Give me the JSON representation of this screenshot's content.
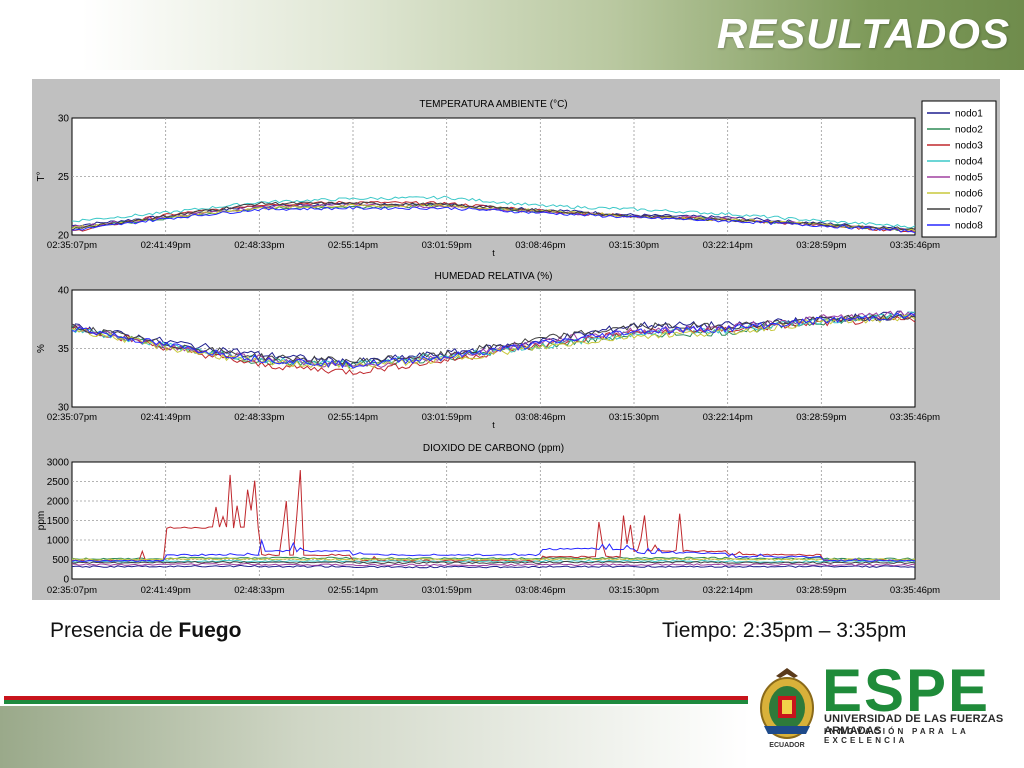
{
  "slide": {
    "title": "RESULTADOS",
    "caption_left_prefix": "Presencia de ",
    "caption_left_bold": "Fuego",
    "caption_right": "Tiempo: 2:35pm – 3:35pm"
  },
  "logo": {
    "word": "ESPE",
    "line1": "UNIVERSIDAD DE LAS FUERZAS ARMADAS",
    "line2": "INNOVACIÓN PARA LA EXCELENCIA",
    "crest_caption": "ECUADOR"
  },
  "colors": {
    "nodo1": "#1f1f8f",
    "nodo2": "#2e8b57",
    "nodo3": "#c0282d",
    "nodo4": "#3cc8c8",
    "nodo5": "#a040a0",
    "nodo6": "#c8c83c",
    "nodo7": "#404040",
    "nodo8": "#2828ff"
  },
  "chart_data": [
    {
      "type": "line",
      "title": "TEMPERATURA AMBIENTE (°C)",
      "xlabel": "t",
      "ylabel": "T°",
      "ylim": [
        20,
        30
      ],
      "yticks": [
        20,
        25,
        30
      ],
      "xticks": [
        "02:35:07pm",
        "02:41:49pm",
        "02:48:33pm",
        "02:55:14pm",
        "03:01:59pm",
        "03:08:46pm",
        "03:15:30pm",
        "03:22:14pm",
        "03:28:59pm",
        "03:35:46pm"
      ],
      "grid": true,
      "legend": "right",
      "legend_entries": [
        "nodo1",
        "nodo2",
        "nodo3",
        "nodo4",
        "nodo5",
        "nodo6",
        "nodo7",
        "nodo8"
      ],
      "series": [
        {
          "name": "nodo1",
          "values": [
            20.8,
            21.6,
            22.5,
            22.6,
            22.6,
            22.2,
            21.7,
            21.5,
            21.0,
            20.5
          ]
        },
        {
          "name": "nodo2",
          "values": [
            20.6,
            21.4,
            22.3,
            22.4,
            22.5,
            22.0,
            21.6,
            21.3,
            20.9,
            20.4
          ]
        },
        {
          "name": "nodo3",
          "values": [
            20.3,
            21.7,
            22.6,
            22.8,
            22.7,
            22.1,
            21.6,
            21.3,
            20.8,
            20.3
          ]
        },
        {
          "name": "nodo4",
          "values": [
            21.2,
            21.9,
            22.8,
            23.1,
            23.2,
            22.5,
            22.2,
            21.8,
            21.2,
            20.7
          ]
        },
        {
          "name": "nodo5",
          "values": [
            20.7,
            21.5,
            22.4,
            22.6,
            22.4,
            22.0,
            21.6,
            21.4,
            20.9,
            20.4
          ]
        },
        {
          "name": "nodo6",
          "values": [
            20.6,
            21.5,
            22.3,
            22.5,
            22.5,
            22.1,
            21.6,
            21.3,
            20.9,
            20.4
          ]
        },
        {
          "name": "nodo7",
          "values": [
            20.5,
            21.6,
            22.7,
            22.7,
            22.6,
            22.1,
            21.6,
            21.3,
            20.9,
            20.5
          ]
        },
        {
          "name": "nodo8",
          "values": [
            20.4,
            21.4,
            22.2,
            22.3,
            22.3,
            21.9,
            21.5,
            21.2,
            20.8,
            20.3
          ]
        }
      ]
    },
    {
      "type": "line",
      "title": "HUMEDAD RELATIVA (%)",
      "xlabel": "t",
      "ylabel": "%",
      "ylim": [
        30,
        40
      ],
      "yticks": [
        30,
        35,
        40
      ],
      "xticks": [
        "02:35:07pm",
        "02:41:49pm",
        "02:48:33pm",
        "02:55:14pm",
        "03:01:59pm",
        "03:08:46pm",
        "03:15:30pm",
        "03:22:14pm",
        "03:28:59pm",
        "03:35:46pm"
      ],
      "grid": true,
      "series": [
        {
          "name": "nodo1",
          "values": [
            36.9,
            35.6,
            34.5,
            33.8,
            34.6,
            35.6,
            37.0,
            37.0,
            37.5,
            38.0
          ]
        },
        {
          "name": "nodo2",
          "values": [
            36.8,
            35.2,
            33.9,
            33.6,
            34.2,
            35.2,
            36.2,
            36.4,
            37.3,
            37.8
          ]
        },
        {
          "name": "nodo3",
          "values": [
            36.9,
            35.1,
            33.6,
            33.0,
            34.0,
            35.3,
            36.4,
            36.6,
            37.2,
            37.5
          ]
        },
        {
          "name": "nodo4",
          "values": [
            36.7,
            35.3,
            34.0,
            33.7,
            34.4,
            35.2,
            36.3,
            36.6,
            37.4,
            37.9
          ]
        },
        {
          "name": "nodo5",
          "values": [
            36.8,
            35.2,
            34.2,
            33.4,
            34.3,
            35.6,
            36.5,
            36.8,
            37.6,
            38.0
          ]
        },
        {
          "name": "nodo6",
          "values": [
            36.7,
            35.1,
            33.8,
            33.5,
            34.1,
            35.1,
            36.1,
            36.4,
            37.3,
            37.6
          ]
        },
        {
          "name": "nodo7",
          "values": [
            36.9,
            35.4,
            34.3,
            33.9,
            34.5,
            35.8,
            36.9,
            36.9,
            37.5,
            37.7
          ]
        },
        {
          "name": "nodo8",
          "values": [
            36.8,
            35.3,
            34.1,
            33.6,
            34.3,
            35.4,
            36.5,
            36.7,
            37.4,
            37.8
          ]
        }
      ]
    },
    {
      "type": "line",
      "title": "DIOXIDO DE CARBONO (ppm)",
      "xlabel": "",
      "ylabel": "ppm",
      "ylim": [
        0,
        3000
      ],
      "yticks": [
        500,
        1000,
        1500,
        2000,
        2500,
        3000
      ],
      "xticks": [
        "02:35:07pm",
        "02:41:49pm",
        "02:48:33pm",
        "02:55:14pm",
        "03:01:59pm",
        "03:08:46pm",
        "03:15:30pm",
        "03:22:14pm",
        "03:28:59pm",
        "03:35:46pm"
      ],
      "grid": true,
      "series": [
        {
          "name": "nodo1",
          "values": [
            300,
            320,
            310,
            300,
            290,
            300,
            300,
            300,
            300,
            300
          ]
        },
        {
          "name": "nodo2",
          "values": [
            500,
            520,
            550,
            520,
            510,
            520,
            540,
            520,
            510,
            500
          ]
        },
        {
          "name": "nodo3",
          "values": [
            450,
            1300,
            2800,
            600,
            450,
            550,
            1850,
            700,
            600,
            450
          ]
        },
        {
          "name": "nodo4",
          "values": [
            430,
            440,
            450,
            440,
            430,
            440,
            450,
            440,
            430,
            430
          ]
        },
        {
          "name": "nodo5",
          "values": [
            350,
            380,
            360,
            350,
            340,
            350,
            360,
            350,
            350,
            340
          ]
        },
        {
          "name": "nodo6",
          "values": [
            480,
            490,
            500,
            490,
            480,
            490,
            500,
            490,
            480,
            480
          ]
        },
        {
          "name": "nodo7",
          "values": [
            400,
            420,
            410,
            400,
            400,
            410,
            420,
            410,
            400,
            400
          ]
        },
        {
          "name": "nodo8",
          "values": [
            450,
            600,
            1100,
            700,
            600,
            750,
            900,
            650,
            550,
            450
          ]
        }
      ]
    }
  ]
}
